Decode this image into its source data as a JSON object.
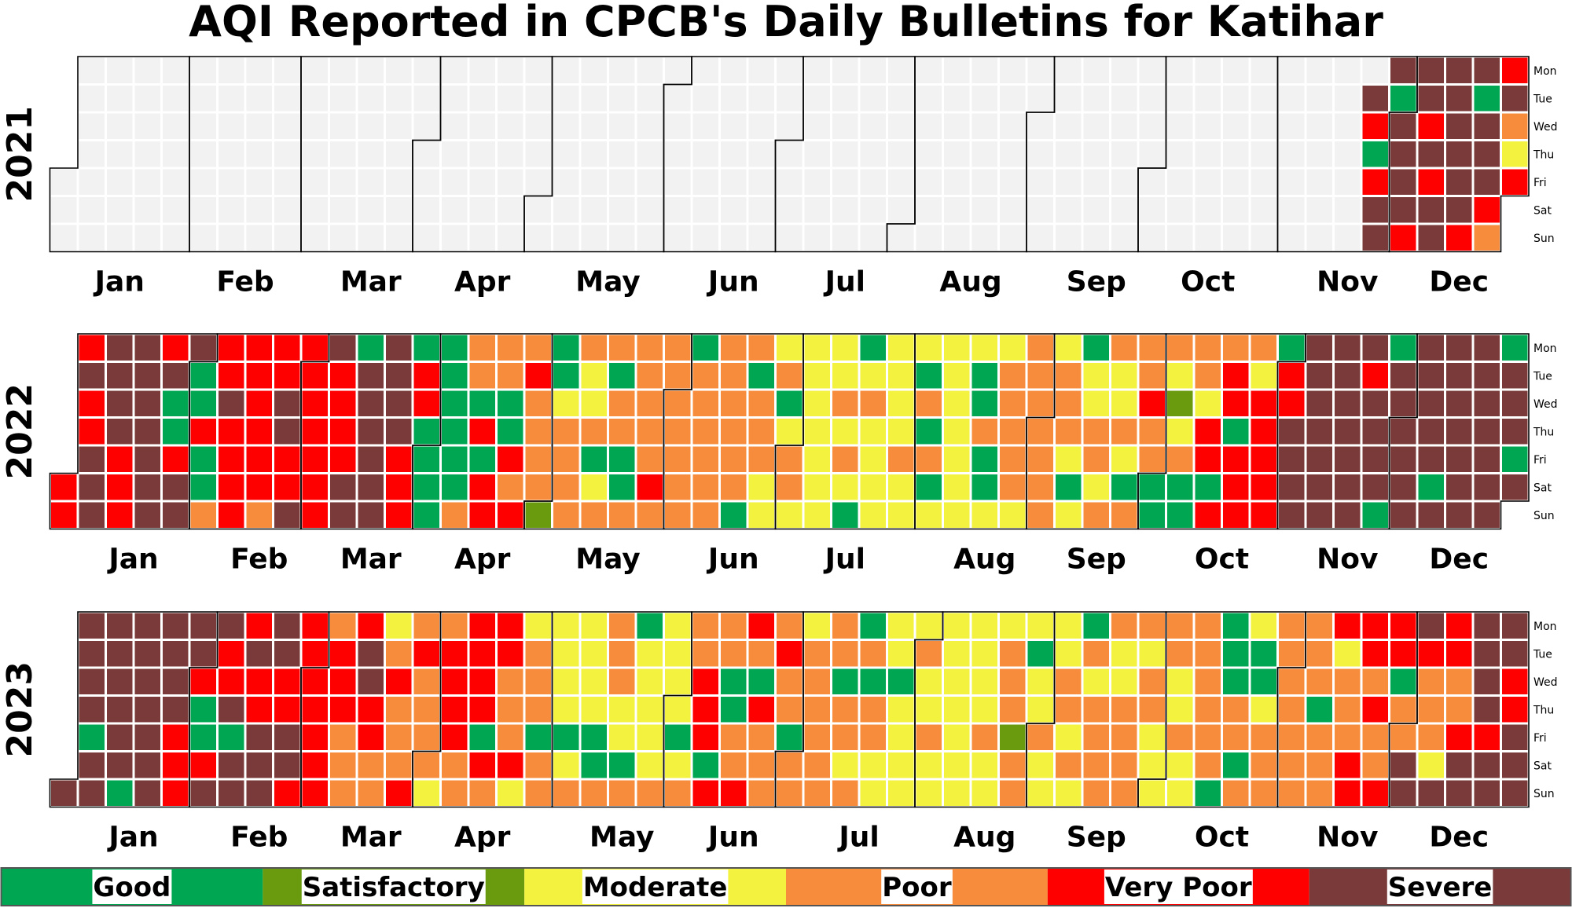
{
  "chart_data": {
    "type": "heatmap",
    "title": "AQI Reported in CPCB's Daily Bulletins for Katihar",
    "weekday_labels": [
      "Mon",
      "Tue",
      "Wed",
      "Thu",
      "Fri",
      "Sat",
      "Sun"
    ],
    "month_labels": [
      "Jan",
      "Feb",
      "Mar",
      "Apr",
      "May",
      "Jun",
      "Jul",
      "Aug",
      "Sep",
      "Oct",
      "Nov",
      "Dec"
    ],
    "legend": [
      {
        "label": "Good",
        "color": "#00a651"
      },
      {
        "label": "Satisfactory",
        "color": "#6a9a0e"
      },
      {
        "label": "Moderate",
        "color": "#f2f23f"
      },
      {
        "label": "Poor",
        "color": "#f68c3c"
      },
      {
        "label": "Very Poor",
        "color": "#ff0000"
      },
      {
        "label": "Severe",
        "color": "#7b3a3a"
      }
    ],
    "no_data_color": "#f2f2f2",
    "category_codes": {
      "G": "Good",
      "S": "Satisfactory",
      "M": "Moderate",
      "P": "Poor",
      "V": "Very Poor",
      "X": "Severe"
    },
    "years": [
      {
        "year": "2021",
        "note": "columns are weeks (Monday start) 0-53; rows Mon..Sun; '.' = no data",
        "week_codes": {
          "0": ".......",
          "1": ".......",
          "2": ".......",
          "3": ".......",
          "4": ".......",
          "5": ".......",
          "6": ".......",
          "7": ".......",
          "8": ".......",
          "9": ".......",
          "10": ".......",
          "11": ".......",
          "12": ".......",
          "13": ".......",
          "14": ".......",
          "15": ".......",
          "16": ".......",
          "17": ".......",
          "18": ".......",
          "19": ".......",
          "20": ".......",
          "21": ".......",
          "22": ".......",
          "23": ".......",
          "24": ".......",
          "25": ".......",
          "26": ".......",
          "27": ".......",
          "28": ".......",
          "29": ".......",
          "30": ".......",
          "31": ".......",
          "32": ".......",
          "33": ".......",
          "34": ".......",
          "35": ".......",
          "36": ".......",
          "37": ".......",
          "38": ".......",
          "39": ".......",
          "40": ".......",
          "41": ".......",
          "42": ".......",
          "43": ".......",
          "44": ".......",
          "45": ".......",
          "46": ".......",
          "47": ".XVGVXX",
          "48": "XGXXXXV",
          "49": "XXVXVXX",
          "50": "XXXXXXV",
          "51": "XGXXXVP",
          "52": "VXPMV.."
        }
      },
      {
        "year": "2022",
        "week_codes": {
          "0": ".....VV",
          "1": "VXVVXXX",
          "2": "XXXXVVV",
          "3": "XXXXXXX",
          "4": "VXGGVXX",
          "5": "XGGVGGP",
          "6": "VVXVVVV",
          "7": "VVVVVVP",
          "8": "VVXXVVX",
          "9": "VVVVVVV",
          "10": "XVVVVXX",
          "11": "GXXXXXX",
          "12": "XXXXVVV",
          "13": "GVVGGGG",
          "14": "GGGGGGP",
          "15": "PPGVGVV",
          "16": "PPGGVPV",
          "17": "PVPPPPS",
          "18": "GGMPPPP",
          "19": "PMMPGMP",
          "20": "PGPPGGP",
          "21": "PPPPPVP",
          "22": "PPPPPPP",
          "23": "GPPPPPP",
          "24": "PPPPPPG",
          "25": "PGPPPMM",
          "26": "MPGMPPM",
          "27": "MMMMMMM",
          "28": "MMPMPMG",
          "29": "GMPMMMM",
          "30": "MMMMPMM",
          "31": "MGPGPGM",
          "32": "MMMMMMM",
          "33": "MGGPGGM",
          "34": "MPPPPPM",
          "35": "PPPPPPP",
          "36": "MPPPMGM",
          "37": "GMMPPMP",
          "38": "PMMPMGP",
          "39": "PPVPPGG",
          "40": "PMSMPGG",
          "41": "PPMVVGV",
          "42": "PVVGVVV",
          "43": "PMVVVVV",
          "44": "GVVXXXX",
          "45": "XXXXXXX",
          "46": "XXXXXXX",
          "47": "XVXXXXG",
          "48": "GXXXXXX",
          "49": "XXXXXGX",
          "50": "XXXXXXX",
          "51": "XXXXXXX",
          "52": "GXXXGXX"
        }
      },
      {
        "year": "2023",
        "week_codes": {
          "0": "......X",
          "1": "XXXXGXX",
          "2": "XXXXXXG",
          "3": "XXXXXXX",
          "4": "XXXXVVV",
          "5": "XXVGGVX",
          "6": "XVVXGXX",
          "7": "VXVVXXX",
          "8": "XXVVXXV",
          "9": "VVVVVVV",
          "10": "PVVVPPP",
          "11": "VXXVVPP",
          "12": "MPVPPPV",
          "13": "PVPPPPM",
          "14": "PVVVVPP",
          "15": "VVVVGVP",
          "16": "VVPPPVM",
          "17": "MPPPGPP",
          "18": "MMMMGMP",
          "19": "MMMMGGP",
          "20": "PPPMMGP",
          "21": "GMMMMMP",
          "22": "MMMMGMP",
          "23": "PPVVVGV",
          "24": "PPGGPPV",
          "25": "VPGVPPP",
          "26": "PVPPGPP",
          "27": "MPPPPPP",
          "28": "PPGPPMP",
          "29": "GPGPPMM",
          "30": "MMGMMMM",
          "31": "MPMMPMM",
          "32": "MMMMMMM",
          "33": "MMMMPMM",
          "34": "MPPPSPP",
          "35": "MGMMPMM",
          "36": "MMPPMPM",
          "37": "GPMPPPP",
          "38": "PMMPPPP",
          "39": "PMPPMMM",
          "40": "PPMMPMM",
          "41": "PPPPPPG",
          "42": "GGGPPGP",
          "43": "MGGMPPP",
          "44": "PPPPPPP",
          "45": "PPPGPPP",
          "46": "VMPPPVV",
          "47": "VVPVPPV",
          "48": "VVGPPXX",
          "49": "XVPPPMX",
          "50": "VVPPVXX",
          "51": "XXXXVXX",
          "52": "XXVVXXX"
        }
      }
    ]
  }
}
